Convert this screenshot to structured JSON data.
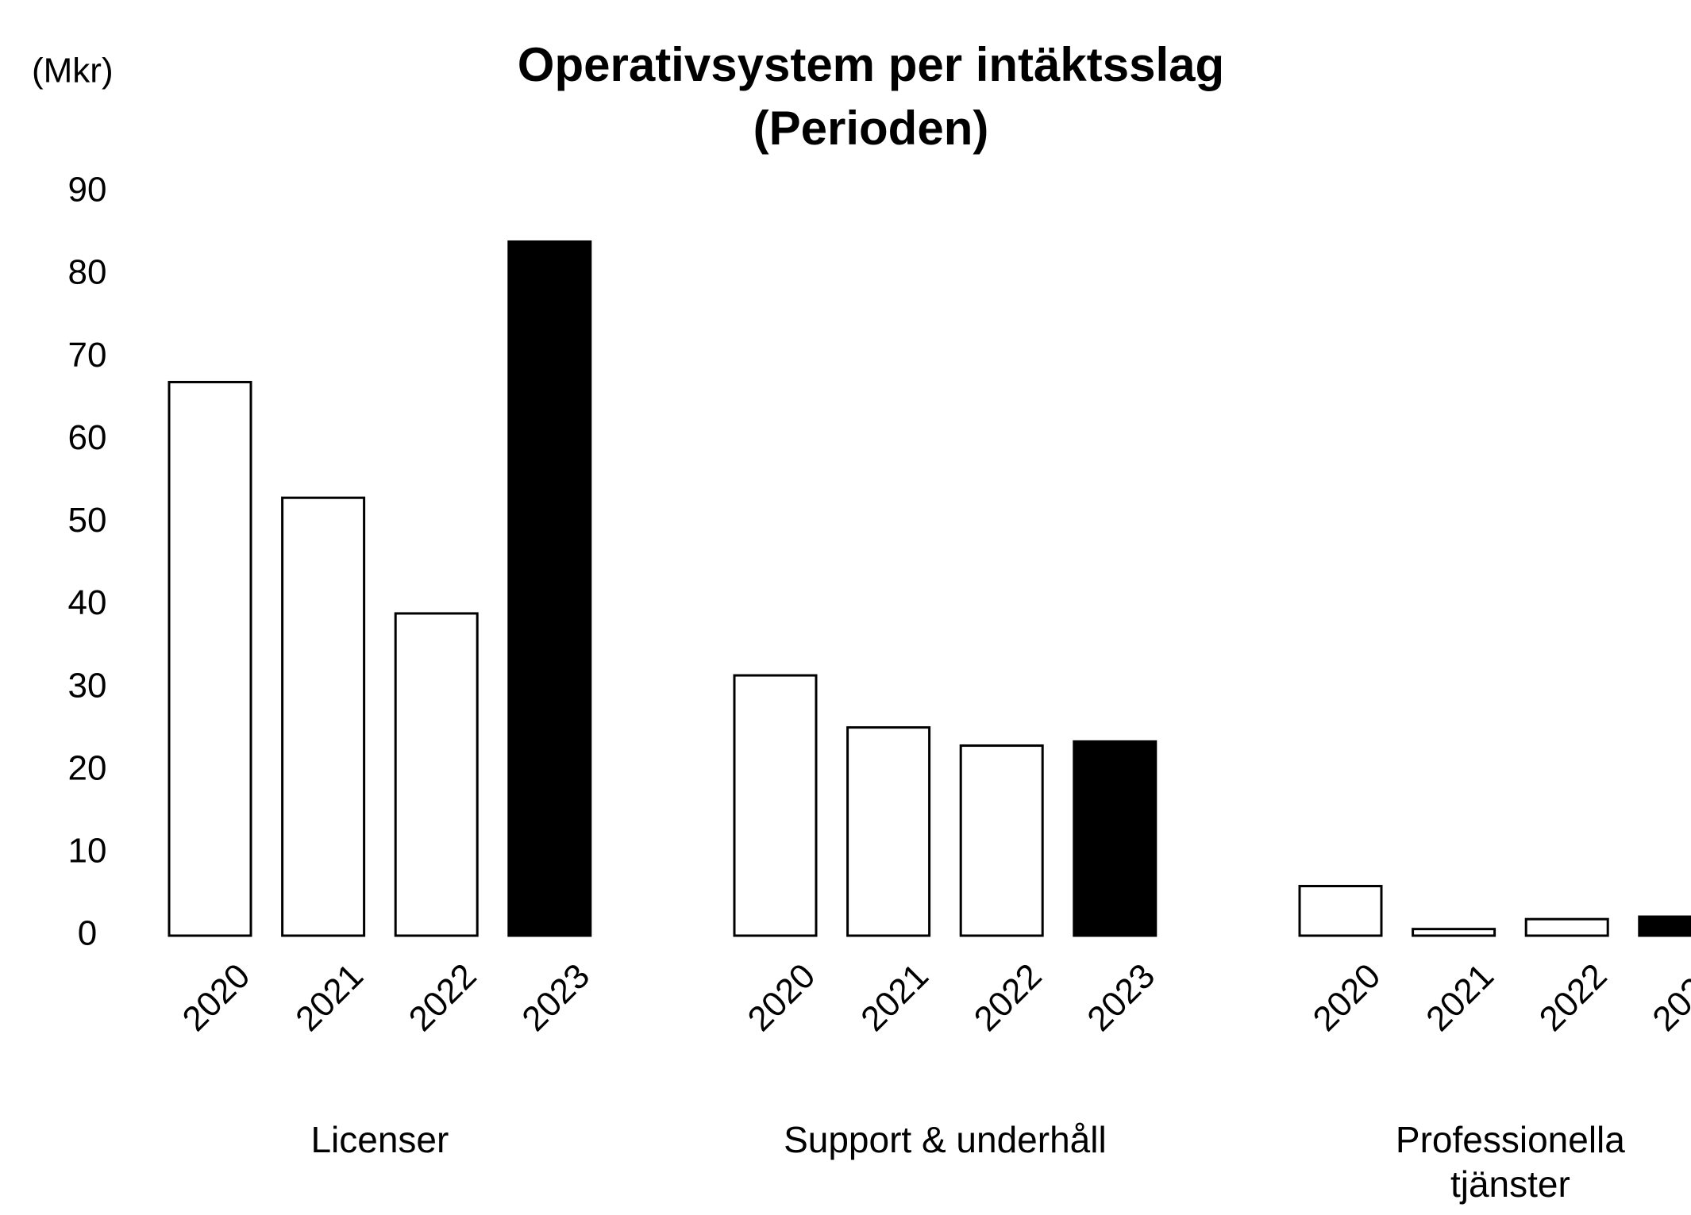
{
  "chart_data": {
    "type": "bar",
    "title": "Operativsystem per intäktsslag",
    "subtitle": "(Perioden)",
    "ylabel": "(Mkr)",
    "categories": [
      "2020",
      "2021",
      "2022",
      "2023"
    ],
    "colors": [
      "#ffffff",
      "#ffffff",
      "#ffffff",
      "#000000"
    ],
    "groups": [
      {
        "name": "Licenser",
        "values": [
          67,
          53,
          39,
          84
        ]
      },
      {
        "name": "Support & underhåll",
        "values": [
          31.5,
          25.2,
          23,
          23.5
        ]
      },
      {
        "name": "Professionella tjänster",
        "values": [
          6,
          0.8,
          2,
          2.3
        ]
      }
    ],
    "ylim": [
      0,
      90
    ],
    "yticks": [
      0,
      10,
      20,
      30,
      40,
      50,
      60,
      70,
      80,
      90
    ],
    "grid": false
  }
}
